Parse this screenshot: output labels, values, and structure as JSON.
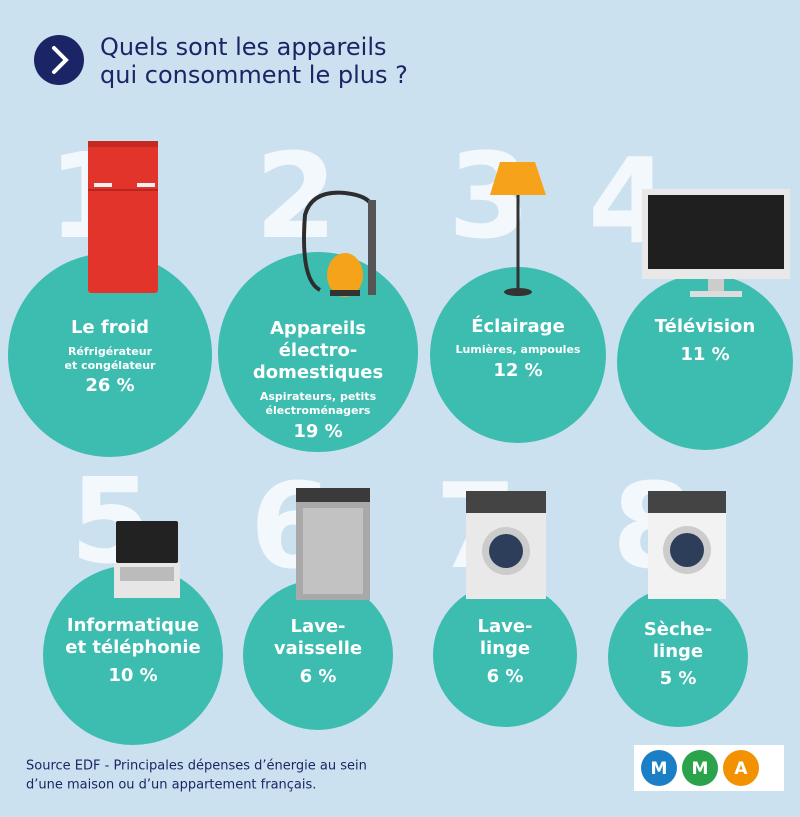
{
  "header": {
    "title_lines": [
      "Quels sont les appareils",
      "qui consomment le plus ?"
    ]
  },
  "items": [
    {
      "rank": "1",
      "title_lines": [
        "Le froid"
      ],
      "detail_lines": [
        "Réfrigérateur",
        "et congélateur"
      ],
      "value": "26 %"
    },
    {
      "rank": "2",
      "title_lines": [
        "Appareils",
        "électro-",
        "domestiques"
      ],
      "detail_lines": [
        "Aspirateurs, petits",
        "électroménagers"
      ],
      "value": "19 %"
    },
    {
      "rank": "3",
      "title_lines": [
        "Éclairage"
      ],
      "detail_lines": [
        "Lumières, ampoules"
      ],
      "value": "12 %"
    },
    {
      "rank": "4",
      "title_lines": [
        "Télévision"
      ],
      "detail_lines": [],
      "value": "11 %"
    },
    {
      "rank": "5",
      "title_lines": [
        "Informatique",
        "et téléphonie"
      ],
      "detail_lines": [],
      "value": "10 %"
    },
    {
      "rank": "6",
      "title_lines": [
        "Lave-",
        "vaisselle"
      ],
      "detail_lines": [],
      "value": "6 %"
    },
    {
      "rank": "7",
      "title_lines": [
        "Lave-",
        "linge"
      ],
      "detail_lines": [],
      "value": "6 %"
    },
    {
      "rank": "8",
      "title_lines": [
        "Sèche-",
        "linge"
      ],
      "detail_lines": [],
      "value": "5 %"
    }
  ],
  "source_lines": [
    "Source EDF - Principales dépenses d’énergie au sein",
    "d’une maison ou d’un appartement français."
  ],
  "logo": [
    "M",
    "M",
    "A"
  ]
}
